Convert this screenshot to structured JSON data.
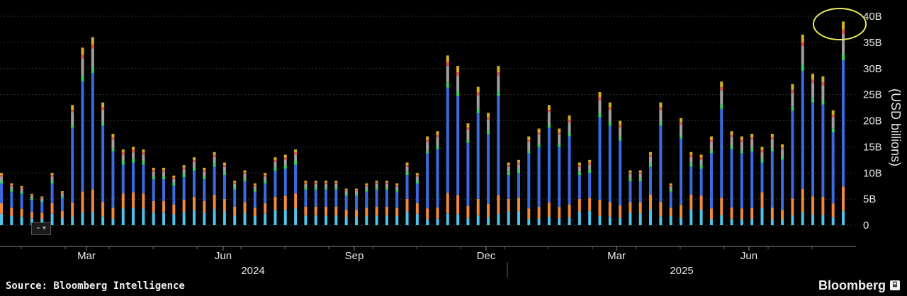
{
  "chart_data": {
    "type": "bar",
    "stacked": true,
    "ylabel": "(USD billions)",
    "ylim": [
      0,
      40
    ],
    "yticks": [
      0,
      5,
      10,
      15,
      20,
      25,
      30,
      35,
      40
    ],
    "ytick_labels": [
      "0",
      "5B",
      "10B",
      "15B",
      "20B",
      "25B",
      "30B",
      "35B",
      "40B"
    ],
    "x_month_labels": [
      "Mar",
      "Jun",
      "Sep",
      "Dec",
      "Mar",
      "Jun"
    ],
    "x_year_labels": [
      "2024",
      "2025"
    ],
    "grid": true,
    "series_colors": [
      "#4fc3e8",
      "#f08a3c",
      "#3a6be0",
      "#36d46a",
      "#a0a0a0",
      "#e45050",
      "#d4b020"
    ],
    "totals": [
      10,
      8,
      7.5,
      6,
      5.5,
      10,
      6.5,
      23,
      34,
      36,
      23.5,
      17.5,
      14.5,
      15,
      14.5,
      11,
      11,
      9.5,
      11.5,
      13,
      11,
      14,
      12,
      8.5,
      10.5,
      8,
      10,
      13,
      13.5,
      14.5,
      8.5,
      8.5,
      8.5,
      8.5,
      7,
      7,
      8,
      8.5,
      8.5,
      8,
      12,
      10,
      17,
      18,
      32.5,
      30.5,
      19.5,
      26.5,
      21.5,
      30.5,
      12,
      12.5,
      17,
      18.5,
      23,
      18.5,
      21,
      12,
      12.5,
      25.5,
      23.5,
      20,
      10.5,
      10.5,
      14,
      23.5,
      8,
      20.5,
      14,
      13.5,
      17,
      27.5,
      18,
      17,
      17.5,
      15,
      17.5,
      15.5,
      27,
      36.5,
      29,
      28.5,
      22,
      39
    ]
  },
  "footer": {
    "source": "Source: Bloomberg Intelligence",
    "brand": "Bloomberg",
    "brand_icon": "bloomberg-terminal-icon"
  },
  "highlight": {
    "shape": "ellipse",
    "color": "#e8e860",
    "target": "last-bar"
  }
}
